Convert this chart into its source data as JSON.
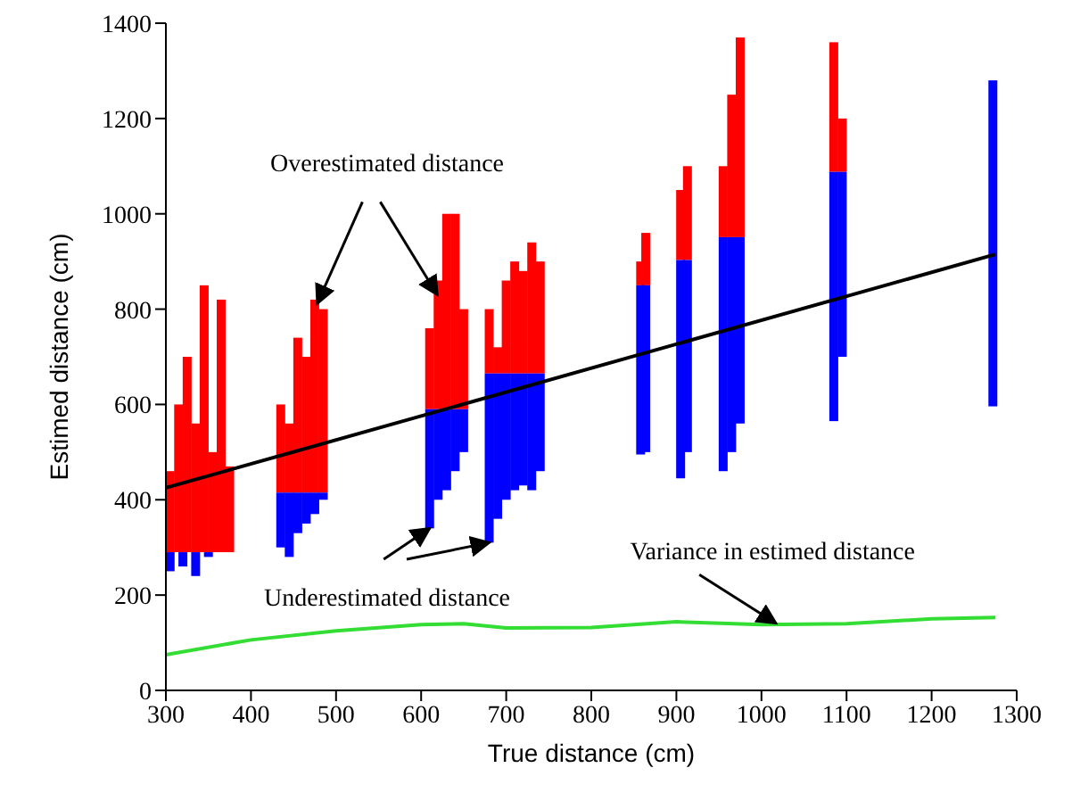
{
  "chart_data": {
    "type": "bar",
    "xlabel": "True distance (cm)",
    "ylabel": "Estimed distance (cm)",
    "xlim": [
      300,
      1300
    ],
    "xticks": [
      300,
      400,
      500,
      600,
      700,
      800,
      900,
      1000,
      1100,
      1200,
      1300
    ],
    "ylim": [
      0,
      1400
    ],
    "yticks": [
      0,
      200,
      400,
      600,
      800,
      1000,
      1200,
      1400
    ],
    "marker": "none",
    "line_style": "solid",
    "annotations": [
      {
        "text": "Overestimated distance",
        "x": 478,
        "y": 812
      },
      {
        "text": "Underestimated distance",
        "x": 610,
        "y": 340
      },
      {
        "text": "Variance in estimed distance",
        "x": 1017,
        "y": 141
      }
    ],
    "series": [
      {
        "color": "#ff0000",
        "x": [
          305,
          315,
          325,
          335,
          345,
          355,
          365,
          375,
          435,
          445,
          455,
          465,
          475,
          485,
          610,
          620,
          630,
          640,
          650,
          680,
          690,
          700,
          710,
          720,
          730,
          740,
          858,
          864,
          905,
          913,
          955,
          965,
          975,
          1085,
          1095
        ],
        "base": [
          290,
          290,
          290,
          290,
          290,
          290,
          290,
          290,
          415,
          415,
          415,
          415,
          415,
          415,
          590,
          590,
          590,
          590,
          590,
          665,
          665,
          665,
          665,
          665,
          665,
          665,
          850,
          850,
          903,
          903,
          951,
          951,
          951,
          1088,
          1088
        ],
        "values": [
          170,
          310,
          410,
          270,
          560,
          210,
          530,
          180,
          185,
          145,
          325,
          285,
          405,
          385,
          170,
          270,
          410,
          410,
          210,
          135,
          55,
          195,
          235,
          215,
          275,
          235,
          50,
          110,
          147,
          197,
          149,
          299,
          419,
          272,
          112
        ]
      },
      {
        "color": "#0000ff",
        "x": [
          305,
          320,
          335,
          350,
          435,
          445,
          455,
          465,
          475,
          485,
          610,
          620,
          630,
          640,
          650,
          680,
          690,
          700,
          710,
          720,
          730,
          740,
          858,
          864,
          905,
          913,
          955,
          965,
          975,
          1085,
          1095,
          1272
        ],
        "base": [
          250,
          260,
          240,
          280,
          300,
          280,
          330,
          350,
          370,
          400,
          340,
          400,
          420,
          460,
          500,
          310,
          360,
          400,
          420,
          430,
          420,
          460,
          495,
          500,
          445,
          500,
          460,
          500,
          560,
          565,
          700,
          596
        ],
        "values": [
          40,
          30,
          50,
          10,
          115,
          135,
          85,
          65,
          45,
          15,
          250,
          190,
          170,
          130,
          90,
          355,
          305,
          265,
          245,
          235,
          245,
          205,
          355,
          350,
          458,
          403,
          491,
          451,
          391,
          523,
          388,
          684
        ]
      },
      {
        "type": "line",
        "color": "#000000",
        "x": [
          300,
          1275
        ],
        "values": [
          425,
          915
        ]
      },
      {
        "type": "line",
        "color": "#33dd33",
        "x": [
          300,
          400,
          500,
          600,
          650,
          700,
          800,
          900,
          1000,
          1100,
          1200,
          1275
        ],
        "values": [
          75,
          106,
          125,
          138,
          140,
          131,
          132,
          144,
          138,
          140,
          150,
          153
        ]
      }
    ]
  }
}
